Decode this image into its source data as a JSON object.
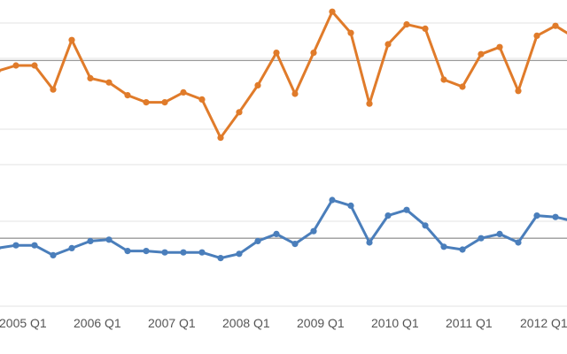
{
  "chart_data": {
    "type": "line",
    "grid": true,
    "x_tick_labels": [
      "2005 Q1",
      "2006 Q1",
      "2007 Q1",
      "2008 Q1",
      "2009 Q1",
      "2010 Q1",
      "2011 Q1",
      "2012 Q1"
    ],
    "x_tick_start_index": [
      0,
      4,
      8,
      12,
      16,
      20,
      24,
      28
    ],
    "panels": [
      {
        "color": "#E07B2A",
        "reference_line_value": 0.735,
        "ylim": [
          0,
          1
        ],
        "gridline_values": [
          0.25,
          0.75,
          1.0
        ],
        "values": [
          0.66,
          0.7,
          0.7,
          0.53,
          0.88,
          0.61,
          0.58,
          0.49,
          0.44,
          0.44,
          0.51,
          0.46,
          0.19,
          0.37,
          0.56,
          0.79,
          0.5,
          0.79,
          1.08,
          0.93,
          0.43,
          0.85,
          0.99,
          0.96,
          0.6,
          0.55,
          0.78,
          0.83,
          0.52,
          0.91,
          0.98,
          0.9
        ]
      },
      {
        "color": "#4A7EBB",
        "reference_line_value": 0.48,
        "ylim": [
          0,
          1
        ],
        "gridline_values": [
          0.0,
          0.6,
          1.0
        ],
        "values": [
          0.41,
          0.43,
          0.43,
          0.36,
          0.41,
          0.46,
          0.47,
          0.39,
          0.39,
          0.38,
          0.38,
          0.38,
          0.34,
          0.37,
          0.46,
          0.51,
          0.44,
          0.53,
          0.75,
          0.71,
          0.45,
          0.64,
          0.68,
          0.57,
          0.42,
          0.4,
          0.48,
          0.51,
          0.45,
          0.64,
          0.63,
          0.6
        ]
      }
    ]
  }
}
